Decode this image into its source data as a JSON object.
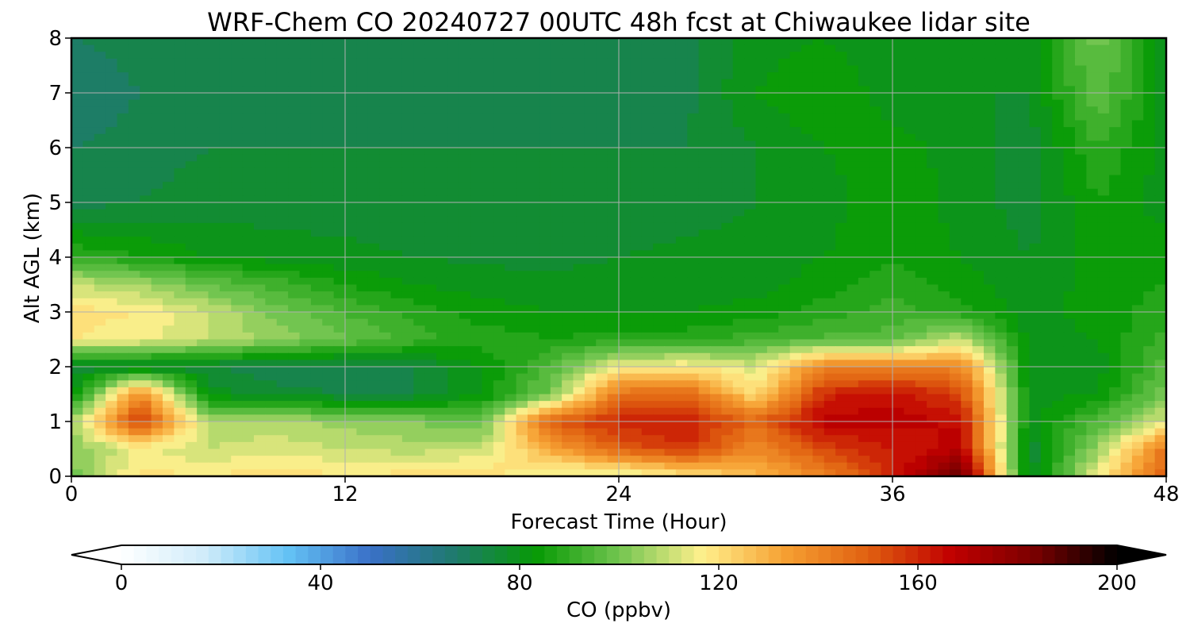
{
  "chart_data": {
    "type": "heatmap",
    "title": "WRF-Chem CO  20240727 00UTC 48h fcst at Chiwaukee lidar site",
    "xlabel": "Forecast Time (Hour)",
    "ylabel": "Alt AGL (km)",
    "xlim": [
      0,
      48
    ],
    "ylim": [
      0,
      8
    ],
    "xticks": [
      "0",
      "12",
      "24",
      "36",
      "48"
    ],
    "yticks": [
      "0",
      "1",
      "2",
      "3",
      "4",
      "5",
      "6",
      "7",
      "8"
    ],
    "grid": true,
    "colorbar": {
      "label": "CO  (ppbv)",
      "range": [
        0,
        200
      ],
      "ticks": [
        "0",
        "40",
        "80",
        "120",
        "160",
        "200"
      ],
      "extend": "both",
      "colors": [
        "#ffffff",
        "#d0ecfa",
        "#64c3f5",
        "#3a70c8",
        "#1f7a6e",
        "#079a05",
        "#72c550",
        "#fff08c",
        "#f6a032",
        "#e06010",
        "#c10000",
        "#7a0000",
        "#000000"
      ]
    },
    "x_hours": [
      0,
      3,
      6,
      9,
      12,
      15,
      18,
      21,
      24,
      27,
      30,
      33,
      36,
      39,
      42,
      45,
      48
    ],
    "y_km": [
      0,
      0.5,
      1,
      1.5,
      2,
      2.5,
      3,
      3.5,
      4,
      5,
      6,
      7,
      8
    ],
    "values": [
      [
        100,
        120,
        118,
        122,
        118,
        120,
        122,
        112,
        110,
        118,
        128,
        140,
        160,
        190,
        75,
        115,
        150
      ],
      [
        102,
        115,
        110,
        112,
        110,
        108,
        110,
        132,
        150,
        158,
        138,
        155,
        162,
        168,
        75,
        105,
        145
      ],
      [
        105,
        158,
        106,
        108,
        104,
        102,
        98,
        150,
        160,
        162,
        148,
        168,
        168,
        165,
        80,
        95,
        112
      ],
      [
        80,
        140,
        80,
        75,
        74,
        74,
        82,
        100,
        145,
        148,
        120,
        160,
        165,
        155,
        80,
        82,
        100
      ],
      [
        75,
        76,
        74,
        72,
        72,
        74,
        82,
        95,
        115,
        118,
        112,
        140,
        140,
        140,
        80,
        80,
        96
      ],
      [
        118,
        115,
        110,
        104,
        98,
        92,
        88,
        86,
        88,
        88,
        92,
        95,
        96,
        110,
        80,
        82,
        92
      ],
      [
        120,
        118,
        110,
        100,
        94,
        88,
        84,
        82,
        82,
        82,
        84,
        88,
        92,
        88,
        80,
        84,
        88
      ],
      [
        110,
        105,
        98,
        92,
        86,
        82,
        80,
        79,
        79,
        79,
        80,
        84,
        88,
        84,
        79,
        84,
        86
      ],
      [
        90,
        86,
        82,
        80,
        79,
        78,
        77,
        77,
        78,
        79,
        80,
        82,
        86,
        82,
        78,
        84,
        84
      ],
      [
        72,
        74,
        76,
        76,
        76,
        76,
        76,
        76,
        76,
        76,
        78,
        80,
        86,
        80,
        76,
        86,
        80
      ],
      [
        70,
        72,
        74,
        74,
        74,
        74,
        74,
        74,
        74,
        74,
        78,
        82,
        84,
        80,
        76,
        90,
        80
      ],
      [
        66,
        70,
        72,
        72,
        72,
        72,
        72,
        72,
        72,
        73,
        82,
        86,
        80,
        78,
        78,
        98,
        80
      ],
      [
        70,
        72,
        72,
        72,
        72,
        72,
        72,
        72,
        70,
        73,
        80,
        82,
        78,
        78,
        80,
        100,
        80
      ]
    ]
  }
}
